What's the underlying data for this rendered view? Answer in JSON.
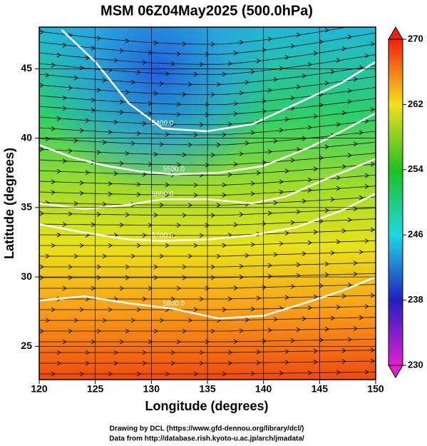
{
  "chart_data": {
    "type": "contour-map",
    "title": "MSM 06Z04May2025 (500.0hPa)",
    "x_label": "Longitude (degrees)",
    "y_label": "Latitude  (degrees)",
    "xlim": [
      120,
      150
    ],
    "xticks": [
      120,
      125,
      130,
      135,
      140,
      145,
      150
    ],
    "ylim": [
      22.6,
      48
    ],
    "yticks": [
      25,
      30,
      35,
      40,
      45
    ],
    "colorbar": {
      "lim": [
        230,
        270
      ],
      "ticks": [
        230,
        238,
        246,
        254,
        262,
        270
      ]
    },
    "contours": [
      {
        "label": "5400.0",
        "x": [
          122,
          125,
          128,
          131,
          135,
          139,
          143,
          147,
          150
        ],
        "y": [
          47.8,
          45.5,
          42.5,
          40.7,
          40.5,
          41,
          42.5,
          44,
          45.5
        ]
      },
      {
        "label": "5500.0",
        "x": [
          120,
          123,
          126,
          129,
          132,
          136,
          140,
          144,
          147,
          150
        ],
        "y": [
          39.5,
          38.6,
          38,
          37.6,
          37.4,
          37.5,
          38,
          39.3,
          40.5,
          41.8
        ]
      },
      {
        "label": "5600.0",
        "x": [
          120,
          124,
          128,
          131,
          135,
          139,
          142,
          146,
          150
        ],
        "y": [
          35.3,
          34.9,
          35.2,
          35.6,
          35.6,
          35.3,
          35.8,
          37.2,
          38.5
        ]
      },
      {
        "label": "5700.0",
        "x": [
          120,
          124,
          128,
          131,
          135,
          139,
          143,
          147,
          150
        ],
        "y": [
          33.8,
          33.2,
          32.7,
          32.6,
          32.7,
          33,
          33.6,
          34.8,
          36
        ]
      },
      {
        "label": "5800.0",
        "x": [
          120,
          124,
          128,
          132,
          136,
          140,
          144,
          147,
          150
        ],
        "y": [
          28.3,
          28.6,
          28.1,
          27.7,
          27,
          27.2,
          28.2,
          29,
          30
        ]
      }
    ],
    "credits": [
      "Drawing by DCL (https://www.gfd-dennou.org/library/dcl/)",
      "Data from http://database.rish.kyoto-u.ac.jp/arch/jmadata/"
    ]
  }
}
